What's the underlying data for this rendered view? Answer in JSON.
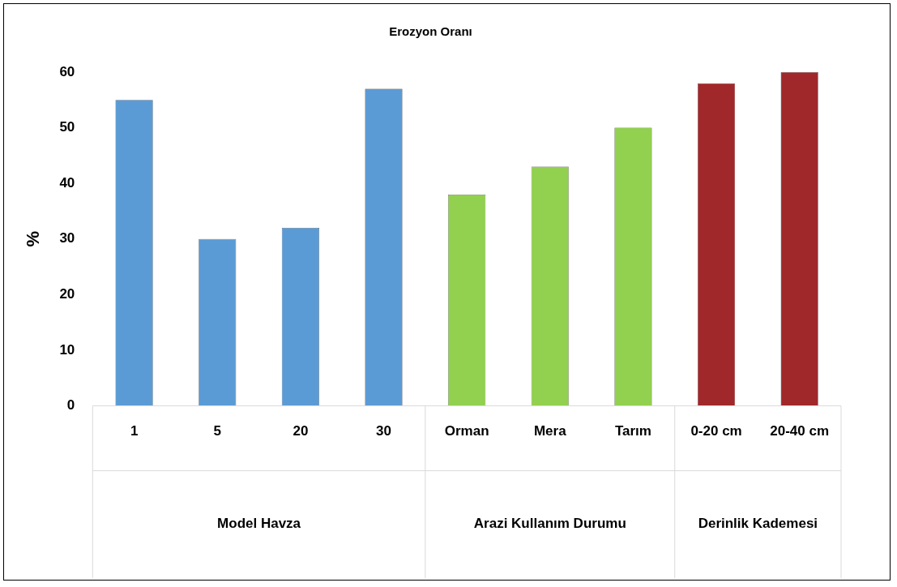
{
  "chart_data": {
    "type": "bar",
    "title": "Erozyon Oranı",
    "ylabel": "%",
    "categories": [
      "1",
      "5",
      "20",
      "30",
      "Orman",
      "Mera",
      "Tarım",
      "0-20 cm",
      "20-40 cm"
    ],
    "values": [
      55,
      30,
      32,
      57,
      38,
      43,
      50,
      58,
      60
    ],
    "colors": [
      "#5b9bd5",
      "#5b9bd5",
      "#5b9bd5",
      "#5b9bd5",
      "#92d050",
      "#92d050",
      "#92d050",
      "#a0282b",
      "#a0282b"
    ],
    "ylim": [
      0,
      60
    ],
    "yticks": [
      0,
      10,
      20,
      30,
      40,
      50,
      60
    ],
    "grid": false,
    "legend": false,
    "annotations": [
      "Model Havza",
      "Arazi Kullanım Durumu",
      "Derinlik Kademesi"
    ]
  }
}
